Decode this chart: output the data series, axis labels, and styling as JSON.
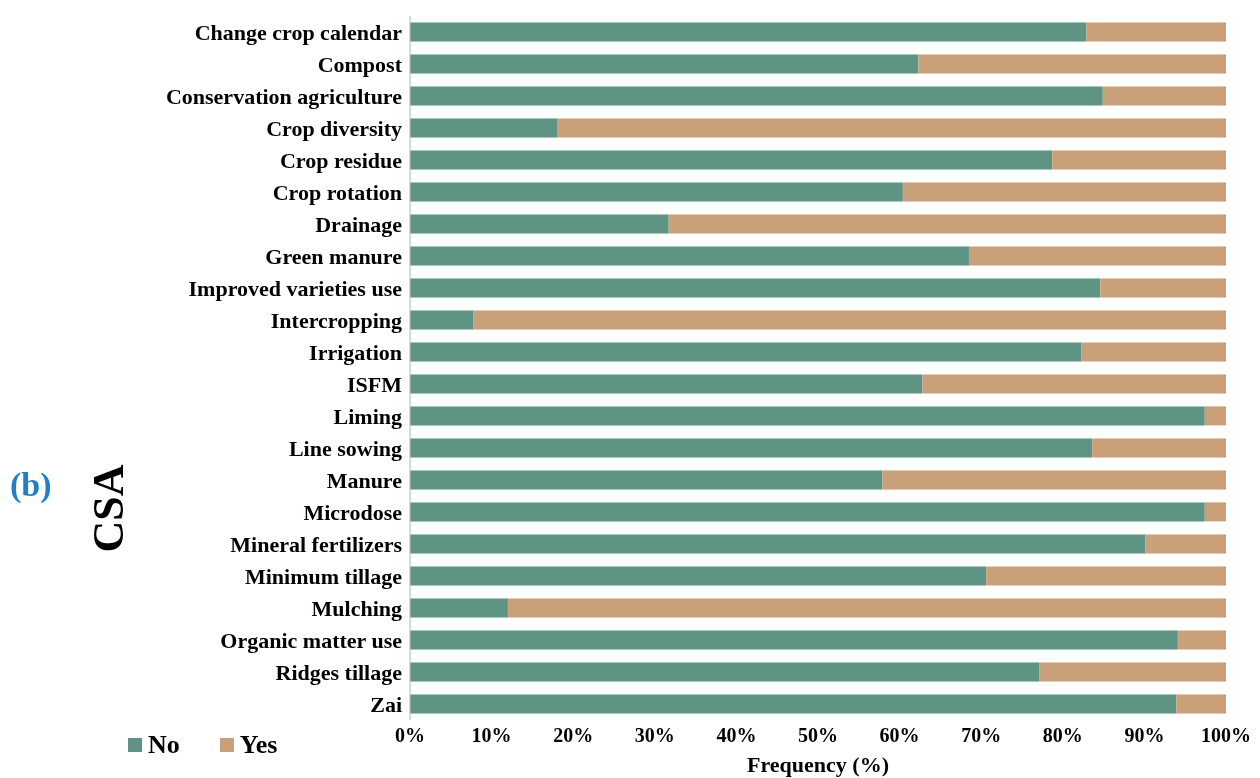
{
  "chart_data": {
    "type": "bar",
    "orientation": "horizontal",
    "stacked": true,
    "categories": [
      "Change crop calendar",
      "Compost",
      "Conservation agriculture",
      "Crop diversity",
      "Crop residue",
      "Crop rotation",
      "Drainage",
      "Green manure",
      "Improved varieties use",
      "Intercropping",
      "Irrigation",
      "ISFM",
      "Liming",
      "Line sowing",
      "Manure",
      "Microdose",
      "Mineral fertilizers",
      "Minimum tillage",
      "Mulching",
      "Organic matter use",
      "Ridges tillage",
      "Zai"
    ],
    "series": [
      {
        "name": "No",
        "color": "#5f9484",
        "values": [
          82.9,
          62.3,
          84.9,
          18.1,
          78.7,
          60.4,
          31.7,
          68.5,
          84.6,
          7.8,
          82.3,
          62.8,
          97.4,
          83.6,
          57.9,
          97.4,
          90.1,
          70.6,
          12.0,
          94.1,
          77.1,
          93.9
        ]
      },
      {
        "name": "Yes",
        "color": "#c9a07a",
        "values": [
          17.1,
          37.7,
          15.1,
          81.9,
          21.3,
          39.6,
          68.3,
          31.5,
          15.4,
          92.2,
          17.7,
          37.2,
          2.6,
          16.4,
          42.1,
          2.6,
          9.9,
          29.4,
          88.0,
          5.9,
          22.9,
          6.1
        ]
      }
    ],
    "xlabel": "Frequency (%)",
    "ylabel": "CSA",
    "annotations": [
      "(b)"
    ],
    "xlim": [
      0,
      100
    ],
    "xticks": [
      {
        "value": 0,
        "label": "0%"
      },
      {
        "value": 10,
        "label": "10%"
      },
      {
        "value": 20,
        "label": "20%"
      },
      {
        "value": 30,
        "label": "30%"
      },
      {
        "value": 40,
        "label": "40%"
      },
      {
        "value": 50,
        "label": "50%"
      },
      {
        "value": 60,
        "label": "60%"
      },
      {
        "value": 70,
        "label": "70%"
      },
      {
        "value": 80,
        "label": "80%"
      },
      {
        "value": 90,
        "label": "90%"
      },
      {
        "value": 100,
        "label": "100%"
      }
    ],
    "grid": false,
    "legend": "bottom left"
  }
}
